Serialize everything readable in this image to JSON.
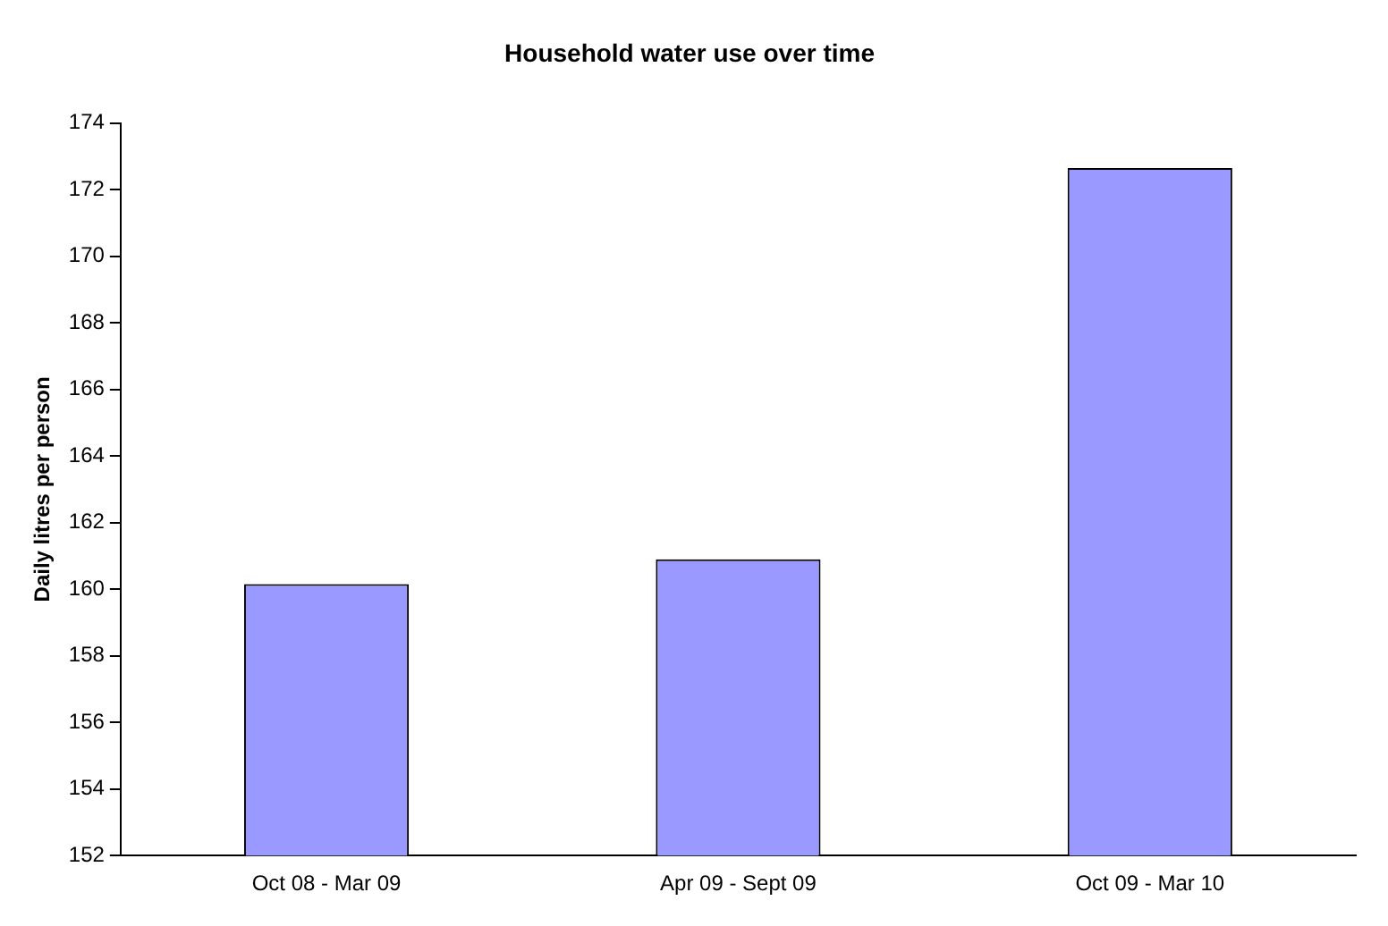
{
  "chart_data": {
    "type": "bar",
    "title": "Household water use over time",
    "ylabel": "Daily litres per person",
    "categories": [
      "Oct 08 - Mar 09",
      "Apr 09 - Sept 09",
      "Oct 09 - Mar 10"
    ],
    "values": [
      160.15,
      160.9,
      172.65
    ],
    "color": "#9999ff",
    "ylim": [
      152,
      174
    ],
    "yticks": [
      152,
      154,
      156,
      158,
      160,
      162,
      164,
      166,
      168,
      170,
      172,
      174
    ],
    "grid": false,
    "legend": false
  }
}
